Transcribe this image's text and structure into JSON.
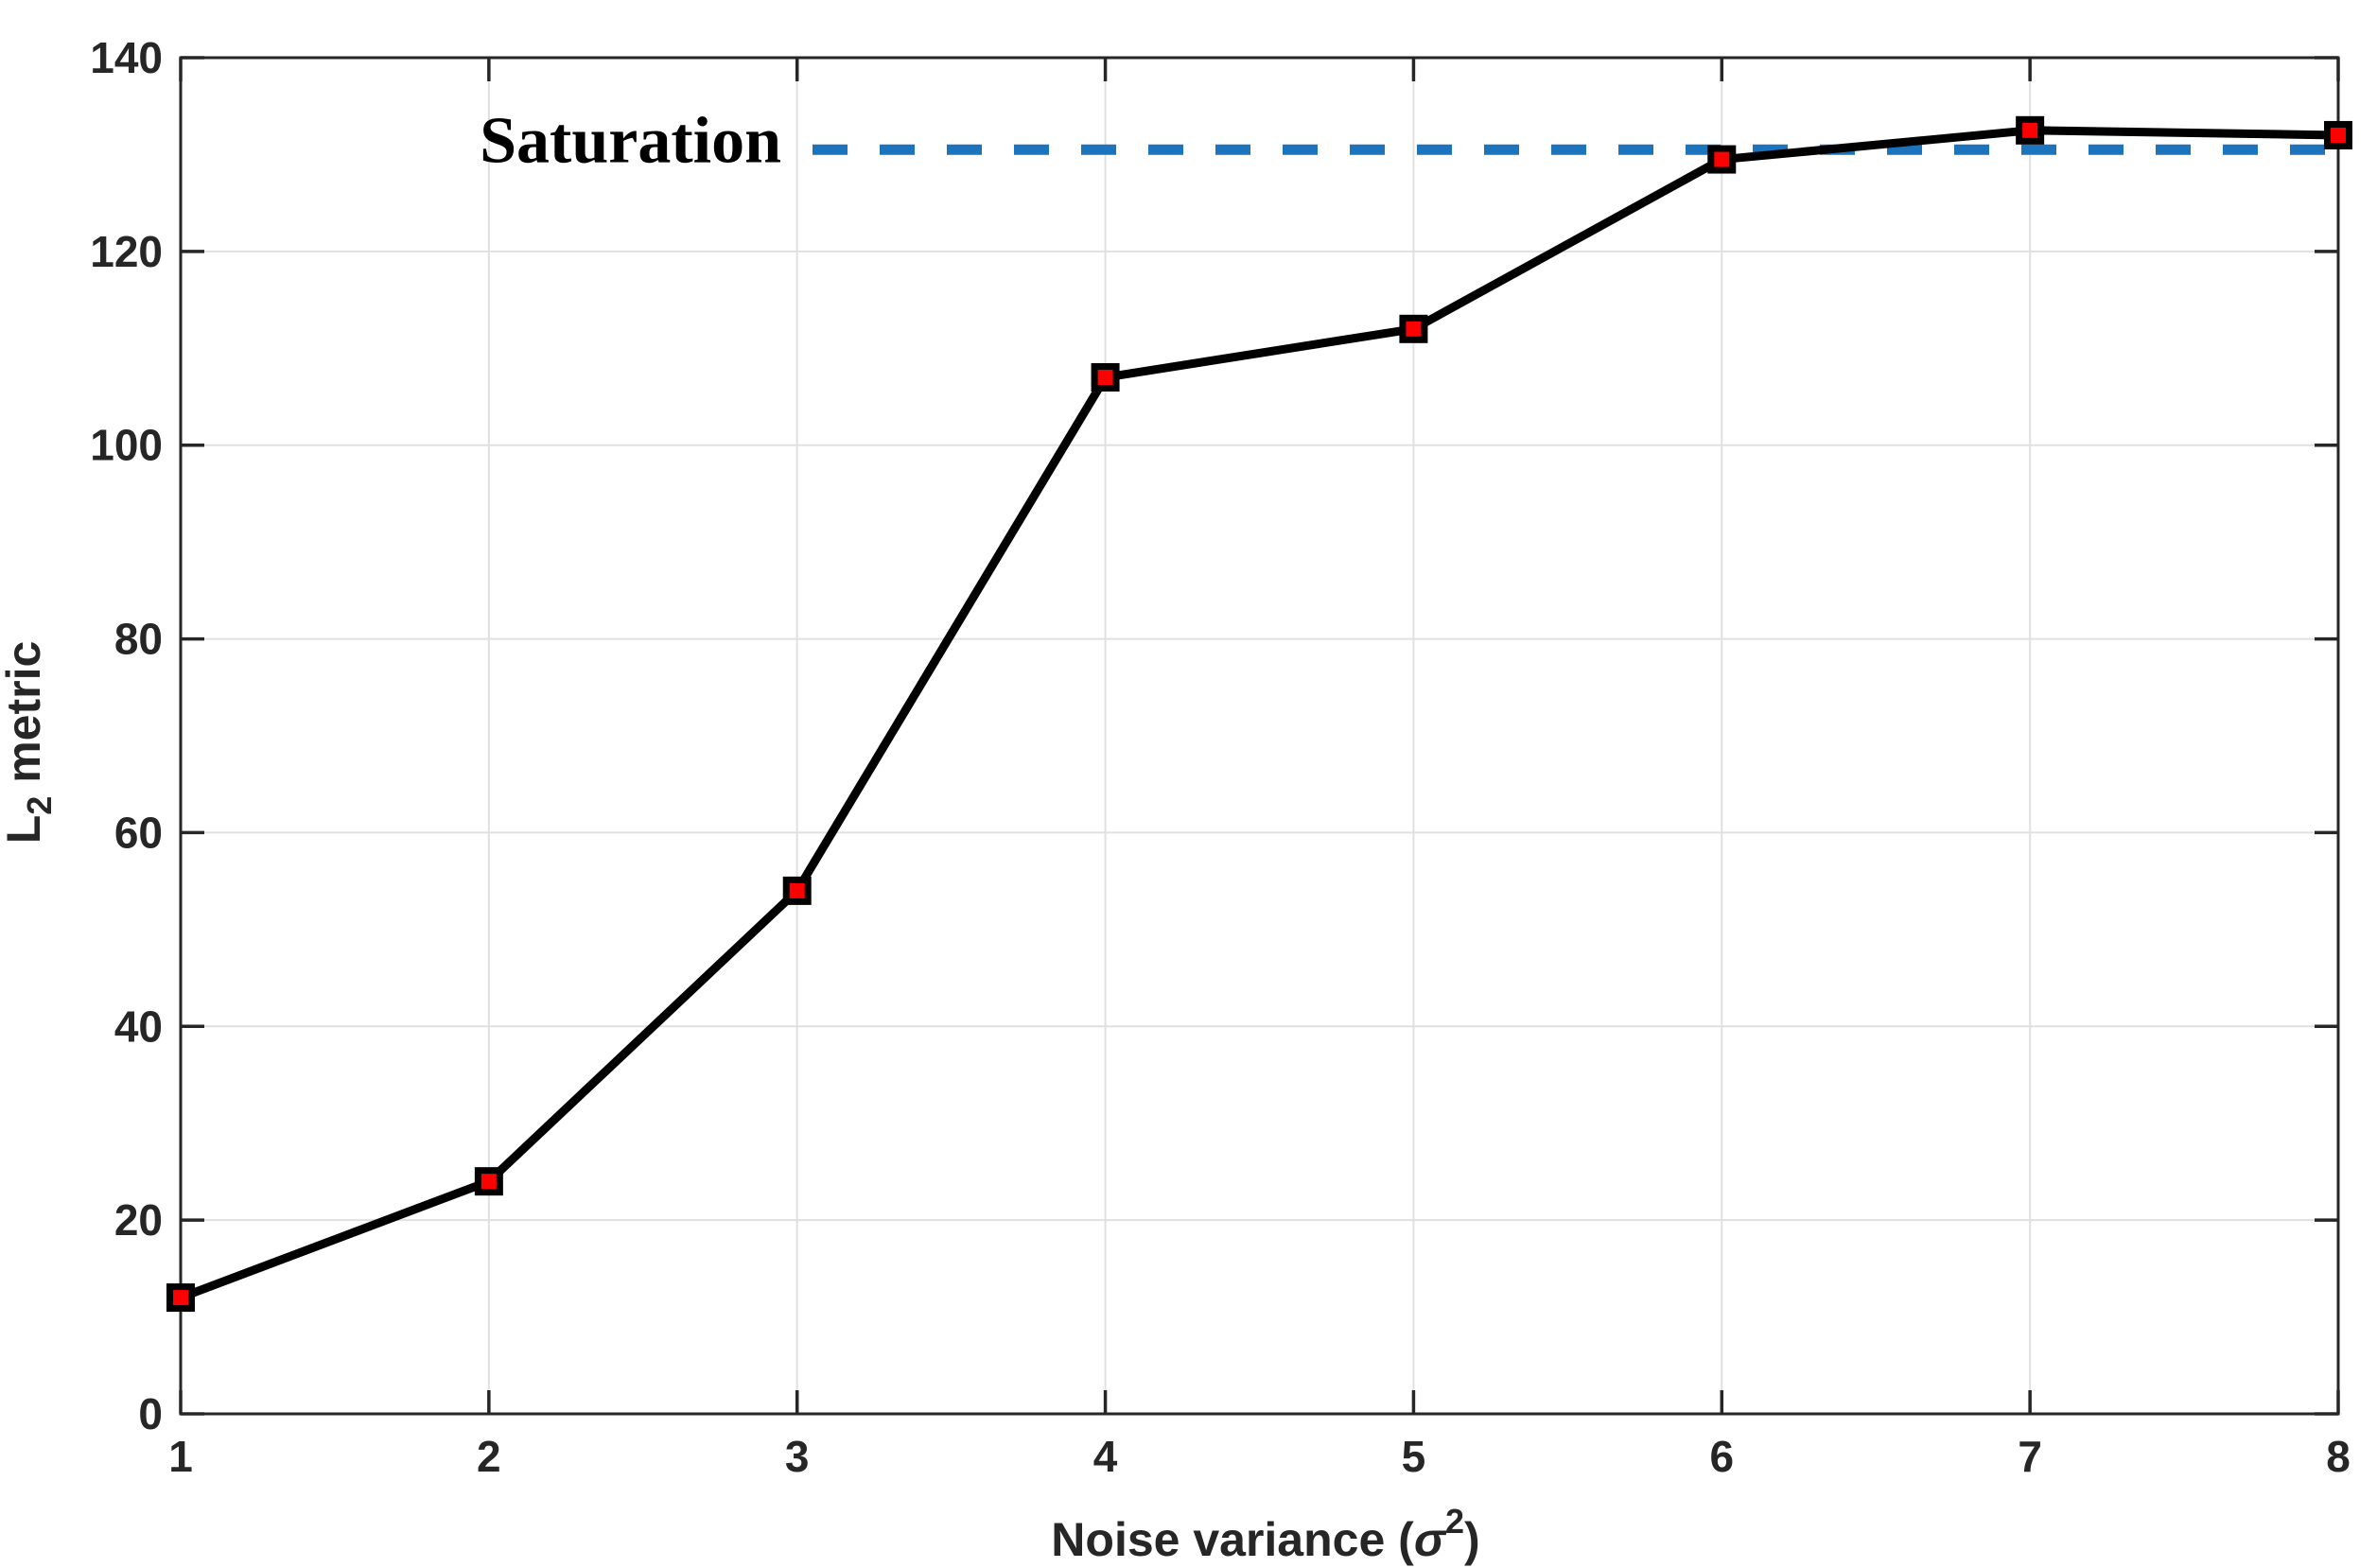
{
  "chart_data": {
    "type": "line",
    "title": "",
    "xlabel": {
      "full": "Noise variance (σ²)",
      "prefix": "Noise variance (",
      "symbol": "σ",
      "superscript": "2",
      "suffix": ")"
    },
    "ylabel": {
      "full": "L₂ metric",
      "main": "L",
      "subscript": "2",
      "rest": " metric"
    },
    "x": [
      1,
      2,
      3,
      4,
      5,
      6,
      7,
      8
    ],
    "series": [
      {
        "name": "L2 metric",
        "values": [
          12,
          24,
          54,
          107,
          112,
          129.5,
          132.5,
          132
        ],
        "marker": "square"
      }
    ],
    "annotation": {
      "text": "Saturation",
      "line_value": 130.5,
      "line_x_start": 3.05,
      "line_x_end": 8,
      "text_x_value": 1.97,
      "text_baseline_value": 129.2
    },
    "xlim": [
      1,
      8
    ],
    "ylim": [
      0,
      140
    ],
    "xticks": [
      1,
      2,
      3,
      4,
      5,
      6,
      7,
      8
    ],
    "yticks": [
      0,
      20,
      40,
      60,
      80,
      100,
      120,
      140
    ],
    "xtick_labels": [
      "1",
      "2",
      "3",
      "4",
      "5",
      "6",
      "7",
      "8"
    ],
    "ytick_labels": [
      "0",
      "20",
      "40",
      "60",
      "80",
      "100",
      "120",
      "140"
    ],
    "grid": true,
    "legend": "none",
    "box": true,
    "colors": {
      "background": "#FFFFFF",
      "series_line": "#000000",
      "marker_fill": "#FF0000",
      "marker_edge": "#000000",
      "saturation_dash": "#1B74BC",
      "grid": "#E0E0E0",
      "axis_frame": "#262626",
      "tick_text": "#262626",
      "label_text": "#262626",
      "annotation_text": "#000000"
    }
  }
}
